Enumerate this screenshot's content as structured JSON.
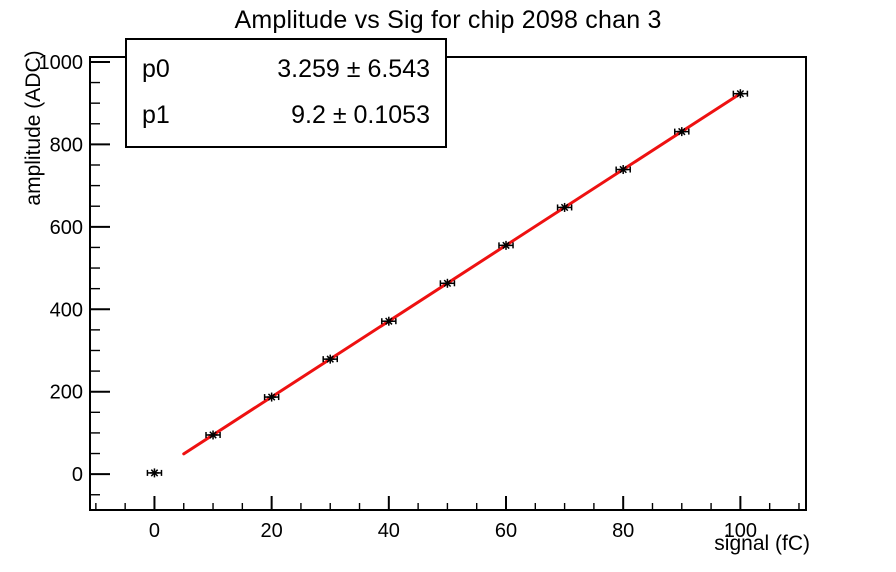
{
  "title": "Amplitude vs Sig for chip 2098 chan 3",
  "stats_box": {
    "rows": [
      {
        "label": "p0",
        "value": "3.259 ± 6.543"
      },
      {
        "label": "p1",
        "value": "9.2 ± 0.1053"
      }
    ]
  },
  "chart_data": {
    "type": "scatter",
    "title": "Amplitude vs Sig for chip 2098 chan 3",
    "xlabel": "signal (fC)",
    "ylabel": "amplitude (ADC)",
    "xlim": [
      -11,
      111.2
    ],
    "ylim": [
      -87,
      1012
    ],
    "x_major_ticks": [
      0,
      20,
      40,
      60,
      80,
      100
    ],
    "y_major_ticks": [
      0,
      200,
      400,
      600,
      800,
      1000
    ],
    "x_minor_step": 5,
    "y_minor_step": 50,
    "grid": false,
    "legend": "none",
    "points": {
      "x": [
        0,
        10,
        20,
        30,
        40,
        50,
        60,
        70,
        80,
        90,
        100
      ],
      "y": [
        3,
        95,
        187,
        279,
        371,
        463,
        555,
        647,
        739,
        831,
        923
      ],
      "x_error": 1.2
    },
    "fit": {
      "p0": 3.259,
      "p0_error": 6.543,
      "p1": 9.2,
      "p1_error": 0.1053,
      "x_range": [
        5,
        100
      ],
      "color": "#ee1111",
      "line_width": 3
    },
    "marker": {
      "style": "asterisk",
      "color": "#000000"
    },
    "axis_color": "#000000"
  }
}
